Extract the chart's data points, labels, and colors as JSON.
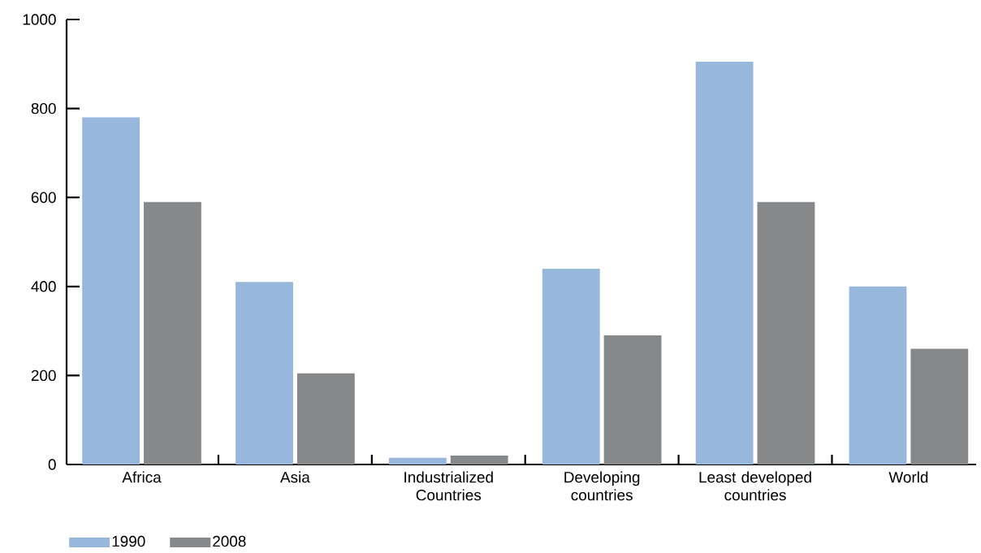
{
  "chart_data": {
    "type": "bar",
    "categories": [
      "Africa",
      "Asia",
      "Industrialized Countries",
      "Developing countries",
      "Least developed countries",
      "World"
    ],
    "series": [
      {
        "name": "1990",
        "color": "#97b7dc",
        "values": [
          780,
          410,
          15,
          440,
          905,
          400
        ]
      },
      {
        "name": "2008",
        "color": "#87888a",
        "values": [
          590,
          205,
          20,
          290,
          590,
          260
        ]
      }
    ],
    "ylim": [
      0,
      1000
    ],
    "yticks": [
      0,
      200,
      400,
      600,
      800,
      1000
    ],
    "grid": false,
    "legend": "bottom left"
  }
}
